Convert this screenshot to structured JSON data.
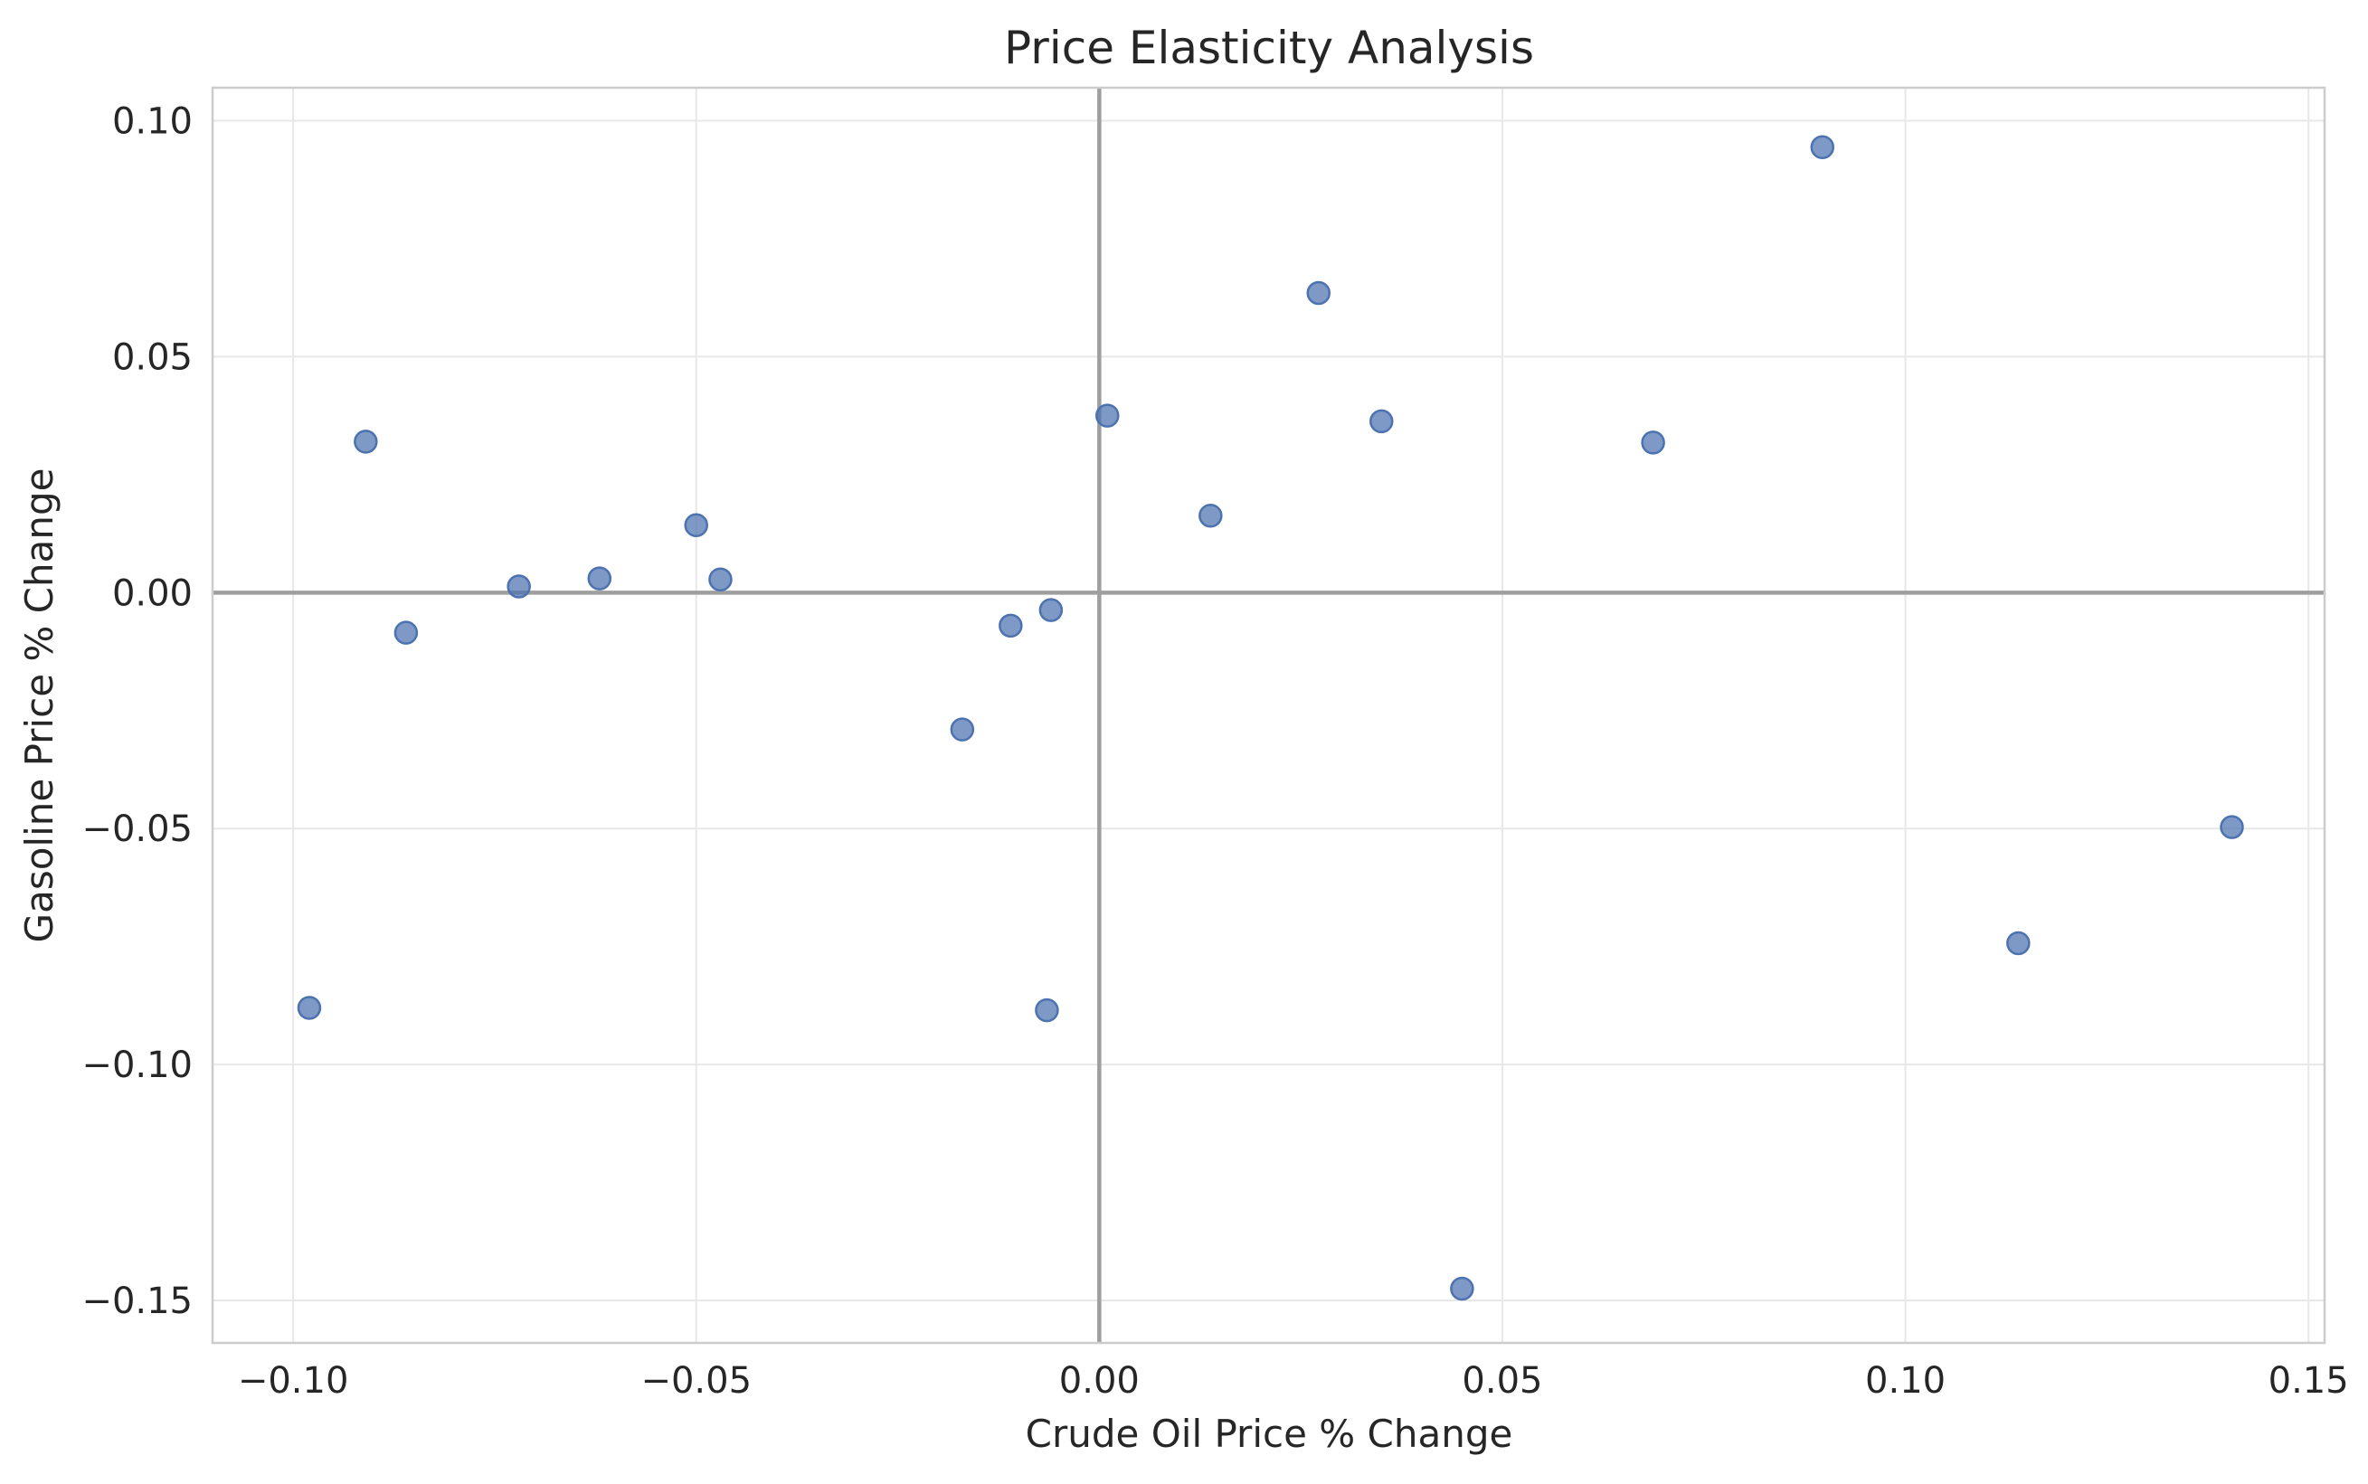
{
  "chart_data": {
    "type": "scatter",
    "title": "Price Elasticity Analysis",
    "xlabel": "Crude Oil Price % Change",
    "ylabel": "Gasoline Price % Change",
    "xlim": [
      -0.11,
      0.152
    ],
    "ylim": [
      -0.159,
      0.107
    ],
    "xticks": [
      -0.1,
      -0.05,
      0.0,
      0.05,
      0.1,
      0.15
    ],
    "xtick_labels": [
      "−0.10",
      "−0.05",
      "0.00",
      "0.05",
      "0.10",
      "0.15"
    ],
    "yticks": [
      -0.15,
      -0.1,
      -0.05,
      0.0,
      0.05,
      0.1
    ],
    "ytick_labels": [
      "−0.15",
      "−0.10",
      "−0.05",
      "0.00",
      "0.05",
      "0.10"
    ],
    "grid": true,
    "reference_lines": {
      "x": 0,
      "y": 0
    },
    "marker_color": "#4c72b0",
    "series": [
      {
        "points": [
          {
            "x": -0.098,
            "y": -0.088
          },
          {
            "x": -0.091,
            "y": 0.032
          },
          {
            "x": -0.086,
            "y": -0.0085
          },
          {
            "x": -0.072,
            "y": 0.0013
          },
          {
            "x": -0.062,
            "y": 0.003
          },
          {
            "x": -0.05,
            "y": 0.0143
          },
          {
            "x": -0.047,
            "y": 0.0028
          },
          {
            "x": -0.017,
            "y": -0.029
          },
          {
            "x": -0.011,
            "y": -0.007
          },
          {
            "x": -0.0065,
            "y": -0.0885
          },
          {
            "x": -0.006,
            "y": -0.0037
          },
          {
            "x": 0.001,
            "y": 0.0375
          },
          {
            "x": 0.0138,
            "y": 0.0163
          },
          {
            "x": 0.0272,
            "y": 0.0635
          },
          {
            "x": 0.035,
            "y": 0.0363
          },
          {
            "x": 0.045,
            "y": -0.1475
          },
          {
            "x": 0.0687,
            "y": 0.0318
          },
          {
            "x": 0.0897,
            "y": 0.0944
          },
          {
            "x": 0.114,
            "y": -0.0743
          },
          {
            "x": 0.1405,
            "y": -0.0497
          }
        ]
      }
    ]
  }
}
